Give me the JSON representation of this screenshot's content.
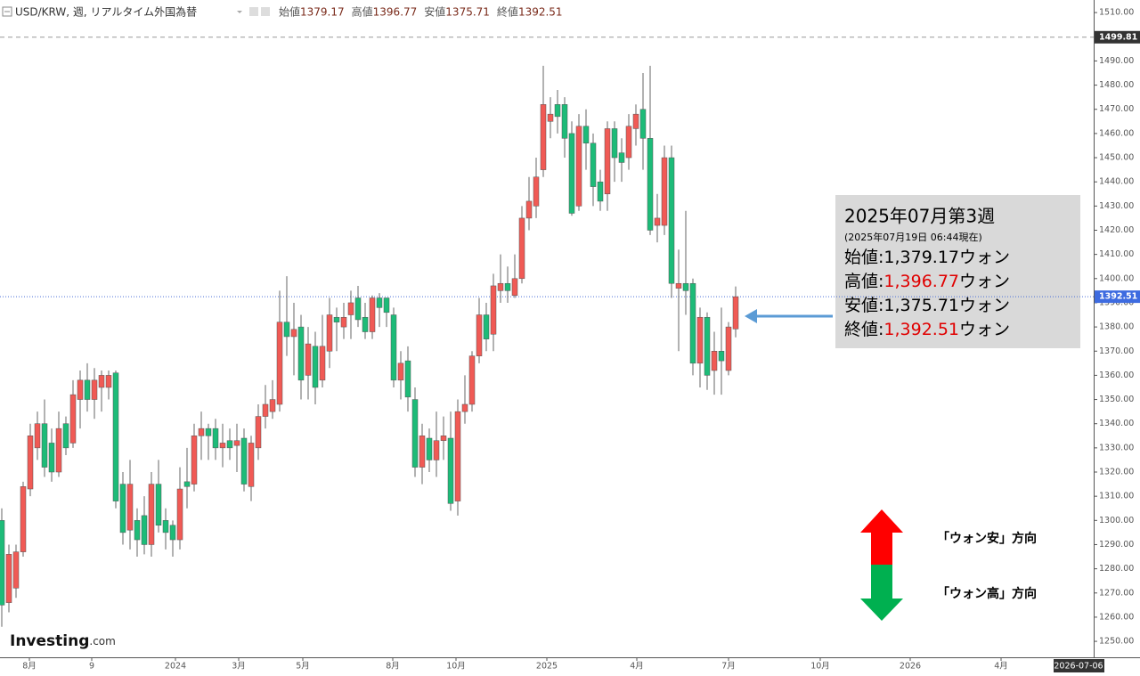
{
  "chart_data": {
    "type": "candlestick",
    "title": "USD/KRW, 週, リアルタイム外国為替",
    "legend_labels": [
      "始値",
      "高値",
      "安値",
      "終値"
    ],
    "categories": [
      null,
      null,
      null,
      null,
      null,
      null,
      null,
      null,
      null,
      null,
      null,
      null,
      null,
      null,
      null,
      null,
      null,
      null,
      null,
      null,
      null,
      null,
      null,
      null,
      null,
      null,
      null,
      null,
      null,
      null,
      null,
      null,
      null,
      null,
      null,
      null,
      null,
      null,
      null,
      null,
      null,
      null,
      null,
      null,
      null,
      null,
      null,
      null,
      null,
      null,
      null,
      null,
      null,
      null,
      null,
      null,
      null,
      null,
      null,
      null,
      null,
      null,
      null,
      null,
      null,
      null,
      null,
      null,
      null,
      null,
      null,
      null,
      null,
      null,
      null,
      null,
      null,
      null,
      null,
      null,
      null,
      null,
      null,
      null,
      null,
      null,
      null,
      null,
      null,
      null,
      null,
      null,
      null,
      null,
      null,
      null,
      null,
      null,
      null,
      null,
      null,
      null,
      null,
      null
    ],
    "open": [
      1300,
      1266,
      1272,
      1287,
      1313,
      1330,
      1340,
      1332,
      1320,
      1340,
      1332,
      1350,
      1358,
      1350,
      1355,
      1355,
      1361,
      1315,
      1296,
      1300,
      1302,
      1290,
      1315,
      1300,
      1298,
      1292,
      1316,
      1315,
      1335,
      1338,
      1338,
      1330,
      1333,
      1331,
      1334,
      1314,
      1330,
      1343,
      1345,
      1348,
      1382,
      1376,
      1380,
      1360,
      1372,
      1358,
      1370,
      1384,
      1380,
      1385,
      1392,
      1384,
      1378,
      1392,
      1392,
      1385,
      1358,
      1366,
      1350,
      1322,
      1334,
      1325,
      1333,
      1334,
      1308,
      1345,
      1348,
      1368,
      1385,
      1377,
      1395,
      1398,
      1393,
      1400,
      1425,
      1430,
      1445,
      1465,
      1472,
      1472,
      1460,
      1430,
      1463,
      1456,
      1440,
      1435,
      1462,
      1452,
      1450,
      1462,
      1470,
      1458,
      1422,
      1422,
      1450,
      1396,
      1398,
      1398,
      1365,
      1384,
      1362,
      1370,
      1362,
      1379.17
    ],
    "high": [
      1305,
      1290,
      1290,
      1316,
      1340,
      1345,
      1350,
      1338,
      1345,
      1343,
      1358,
      1362,
      1365,
      1363,
      1362,
      1362,
      1362,
      1320,
      1325,
      1305,
      1310,
      1320,
      1325,
      1305,
      1300,
      1322,
      1330,
      1340,
      1345,
      1340,
      1342,
      1340,
      1338,
      1340,
      1338,
      1335,
      1348,
      1356,
      1358,
      1395,
      1401,
      1390,
      1385,
      1380,
      1378,
      1385,
      1392,
      1388,
      1390,
      1395,
      1397,
      1390,
      1393,
      1394,
      1392,
      1388,
      1370,
      1372,
      1355,
      1340,
      1338,
      1345,
      1343,
      1345,
      1350,
      1360,
      1370,
      1392,
      1390,
      1402,
      1410,
      1405,
      1410,
      1430,
      1442,
      1450,
      1488,
      1475,
      1478,
      1475,
      1465,
      1468,
      1470,
      1460,
      1445,
      1465,
      1465,
      1458,
      1468,
      1472,
      1485,
      1488,
      1435,
      1455,
      1455,
      1412,
      1428,
      1400,
      1388,
      1386,
      1378,
      1388,
      1382,
      1396.77
    ],
    "low": [
      1256,
      1262,
      1268,
      1285,
      1310,
      1325,
      1318,
      1316,
      1318,
      1327,
      1330,
      1338,
      1345,
      1342,
      1345,
      1350,
      1305,
      1290,
      1288,
      1285,
      1286,
      1285,
      1295,
      1288,
      1285,
      1288,
      1305,
      1312,
      1325,
      1325,
      1325,
      1322,
      1325,
      1320,
      1312,
      1308,
      1325,
      1338,
      1342,
      1345,
      1368,
      1360,
      1350,
      1350,
      1348,
      1355,
      1363,
      1370,
      1375,
      1375,
      1380,
      1375,
      1375,
      1380,
      1380,
      1355,
      1350,
      1345,
      1318,
      1315,
      1320,
      1318,
      1325,
      1304,
      1302,
      1340,
      1345,
      1365,
      1370,
      1370,
      1390,
      1390,
      1392,
      1398,
      1420,
      1425,
      1442,
      1458,
      1460,
      1450,
      1426,
      1428,
      1445,
      1430,
      1428,
      1428,
      1440,
      1440,
      1445,
      1455,
      1445,
      1418,
      1415,
      1418,
      1392,
      1370,
      1385,
      1360,
      1355,
      1354,
      1352,
      1352,
      1360,
      1375.71
    ],
    "close": [
      1265,
      1286,
      1287,
      1314,
      1335,
      1340,
      1322,
      1320,
      1338,
      1330,
      1352,
      1358,
      1350,
      1358,
      1360,
      1360,
      1308,
      1295,
      1315,
      1292,
      1290,
      1315,
      1298,
      1295,
      1292,
      1313,
      1314,
      1335,
      1338,
      1335,
      1330,
      1332,
      1330,
      1333,
      1315,
      1332,
      1343,
      1348,
      1350,
      1382,
      1376,
      1379,
      1358,
      1373,
      1355,
      1372,
      1385,
      1382,
      1384,
      1390,
      1383,
      1378,
      1392,
      1388,
      1386,
      1358,
      1365,
      1351,
      1322,
      1335,
      1325,
      1333,
      1335,
      1307,
      1345,
      1348,
      1368,
      1385,
      1375,
      1397,
      1398,
      1395,
      1400,
      1425,
      1432,
      1442,
      1472,
      1468,
      1467,
      1458,
      1427,
      1463,
      1456,
      1438,
      1432,
      1462,
      1450,
      1448,
      1463,
      1468,
      1458,
      1420,
      1425,
      1450,
      1398,
      1398,
      1395,
      1365,
      1384,
      1360,
      1370,
      1366,
      1380,
      1392.51
    ],
    "up_color": "#f05a55",
    "down_color": "#1dbb78",
    "xlim": [
      -0.25,
      153.25
    ],
    "xticks": [
      {
        "value": 3.875,
        "label": "8月"
      },
      {
        "value": 12.625,
        "label": "9"
      },
      {
        "value": 24.375,
        "label": "2024"
      },
      {
        "value": 33.25,
        "label": "3月"
      },
      {
        "value": 42.25,
        "label": "5月"
      },
      {
        "value": 54.875,
        "label": "8月"
      },
      {
        "value": 63.75,
        "label": "10月"
      },
      {
        "value": 76.5,
        "label": "2025"
      },
      {
        "value": 89.125,
        "label": "4月"
      },
      {
        "value": 102,
        "label": "7月"
      },
      {
        "value": 114.875,
        "label": "10月"
      },
      {
        "value": 127.5,
        "label": "2026"
      },
      {
        "value": 140.25,
        "label": "4月"
      }
    ],
    "x_cursor_label": "2026-07-06",
    "ylim": [
      1243.4,
      1515.2
    ],
    "yticks": [
      {
        "value": 1250,
        "label": "1250.00"
      },
      {
        "value": 1260,
        "label": "1260.00"
      },
      {
        "value": 1270,
        "label": "1270.00"
      },
      {
        "value": 1280,
        "label": "1280.00"
      },
      {
        "value": 1290,
        "label": "1290.00"
      },
      {
        "value": 1300,
        "label": "1300.00"
      },
      {
        "value": 1310,
        "label": "1310.00"
      },
      {
        "value": 1320,
        "label": "1320.00"
      },
      {
        "value": 1330,
        "label": "1330.00"
      },
      {
        "value": 1340,
        "label": "1340.00"
      },
      {
        "value": 1350,
        "label": "1350.00"
      },
      {
        "value": 1360,
        "label": "1360.00"
      },
      {
        "value": 1370,
        "label": "1370.00"
      },
      {
        "value": 1380,
        "label": "1380.00"
      },
      {
        "value": 1390,
        "label": "1390.00"
      },
      {
        "value": 1400,
        "label": "1400.00"
      },
      {
        "value": 1410,
        "label": "1410.00"
      },
      {
        "value": 1420,
        "label": "1420.00"
      },
      {
        "value": 1430,
        "label": "1430.00"
      },
      {
        "value": 1440,
        "label": "1440.00"
      },
      {
        "value": 1450,
        "label": "1450.00"
      },
      {
        "value": 1460,
        "label": "1460.00"
      },
      {
        "value": 1470,
        "label": "1470.00"
      },
      {
        "value": 1480,
        "label": "1480.00"
      },
      {
        "value": 1490,
        "label": "1490.00"
      },
      {
        "value": 1500,
        "label": "1500.00"
      },
      {
        "value": 1510,
        "label": "1510.00"
      }
    ],
    "high_marker": 1499.81,
    "grid": false
  },
  "info_box": {
    "title": "2025年07月第3週",
    "subtitle": "(2025年07月19日 06:44現在)",
    "rows": [
      {
        "label": "始値:",
        "value": "1,379.17",
        "unit": "ウォン",
        "color": "#000000"
      },
      {
        "label": "高値:",
        "value": "1,396.77",
        "unit": "ウォン",
        "color": "#e00000"
      },
      {
        "label": "安値:",
        "value": "1,375.71",
        "unit": "ウォン",
        "color": "#000000"
      },
      {
        "label": "終値:",
        "value": "1,392.51",
        "unit": "ウォン",
        "color": "#e00000"
      }
    ]
  },
  "direction_labels": {
    "up": "「ウォン安」方向",
    "down": "「ウォン高」方向"
  },
  "logo": {
    "name": "Investing",
    "suffix": ".com"
  }
}
